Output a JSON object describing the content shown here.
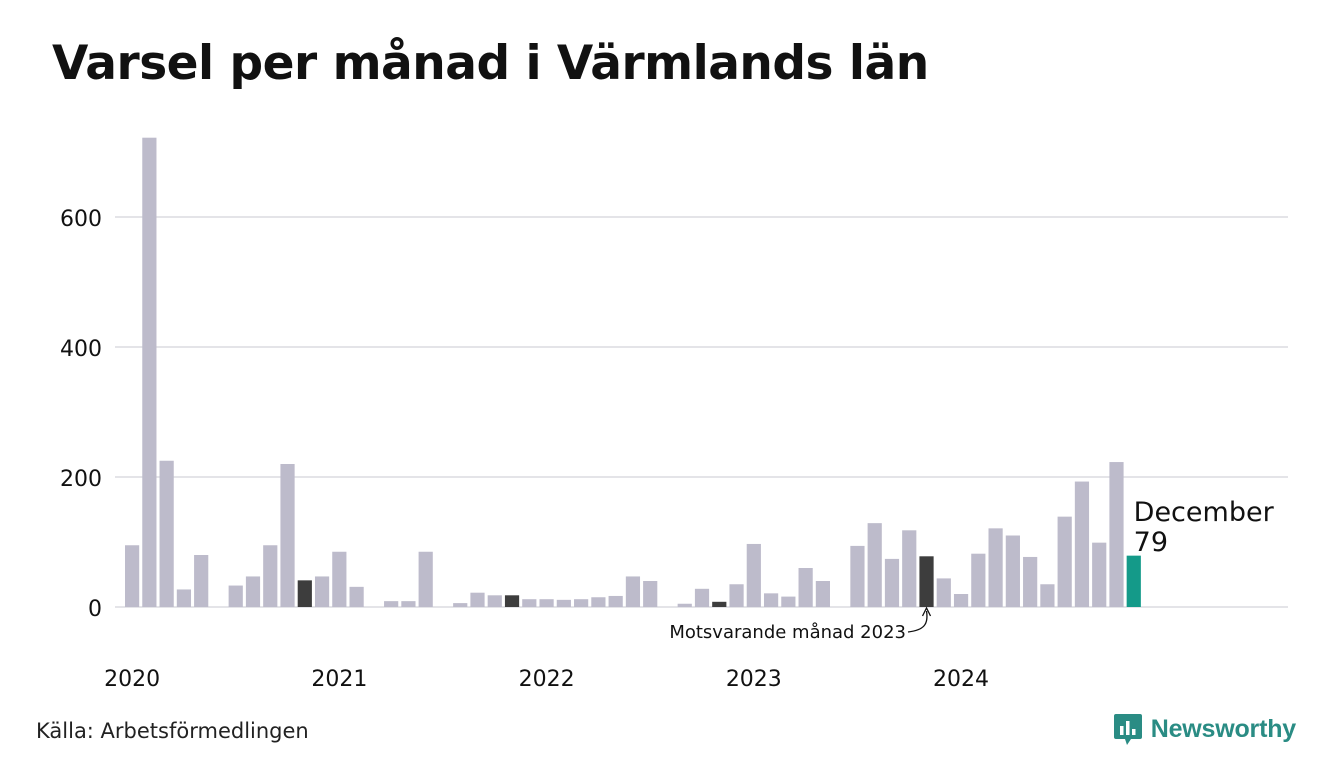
{
  "title": "Varsel per månad i Värmlands län",
  "source": "Källa: Arbetsförmedlingen",
  "brand": {
    "name": "Newsworthy",
    "logo_icon": "bar-chart-speech-bubble-icon"
  },
  "colors": {
    "default": "#bdbbcb",
    "corresponding": "#3d3d3d",
    "current": "#149a89",
    "grid": "#e4e4e8",
    "brand": "#2a8c84"
  },
  "chart_data": {
    "type": "bar",
    "title": "Varsel per månad i Värmlands län",
    "xlabel": "",
    "ylabel": "",
    "ylim": [
      0,
      720
    ],
    "yticks": [
      0,
      200,
      400,
      600
    ],
    "grid": true,
    "year_labels": [
      "2020",
      "2021",
      "2022",
      "2023",
      "2024"
    ],
    "values": [
      95,
      722,
      225,
      27,
      80,
      0,
      33,
      47,
      95,
      220,
      41,
      47,
      85,
      31,
      0,
      9,
      9,
      85,
      0,
      6,
      22,
      18,
      18,
      12,
      12,
      11,
      12,
      15,
      17,
      47,
      40,
      0,
      5,
      28,
      8,
      35,
      97,
      21,
      16,
      60,
      40,
      0,
      94,
      129,
      74,
      118,
      78,
      44,
      20,
      82,
      121,
      110,
      77,
      35,
      139,
      193,
      99,
      223,
      79
    ],
    "highlight_corresponding": [
      10,
      22,
      34,
      46
    ],
    "highlight_current": 58,
    "annotations": [
      {
        "text": "Motsvarande månad 2023",
        "target_index": 46
      },
      {
        "text": "December",
        "value_label": "79",
        "target_index": 58
      }
    ]
  }
}
